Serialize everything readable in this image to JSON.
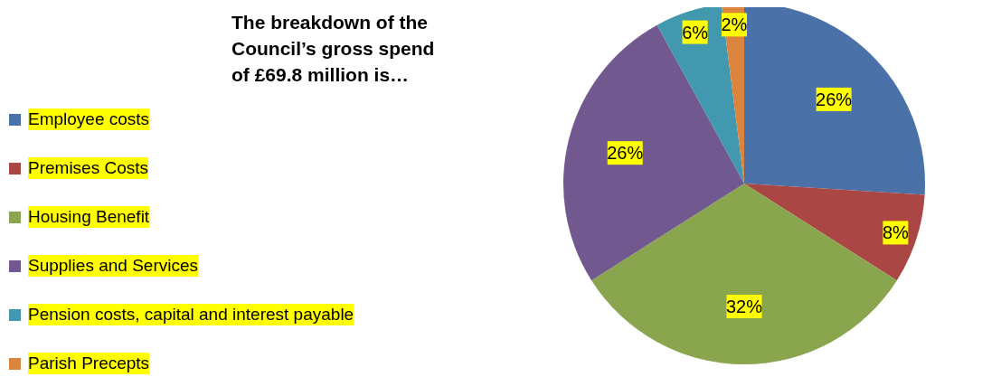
{
  "chart_data": {
    "type": "pie",
    "title": "The breakdown of the Council’s gross spend of £69.8 million is…",
    "categories": [
      "Employee costs",
      "Premises Costs",
      "Housing Benefit",
      "Supplies and Services",
      "Pension costs, capital and interest payable",
      "Parish Precepts"
    ],
    "values": [
      26,
      8,
      32,
      26,
      6,
      2
    ],
    "colors": [
      "#4a72a8",
      "#aa4644",
      "#89a54e",
      "#71588f",
      "#4198af",
      "#db843d"
    ],
    "value_labels": [
      "26%",
      "8%",
      "32%",
      "26%",
      "6%",
      "2%"
    ],
    "legend": "left"
  }
}
